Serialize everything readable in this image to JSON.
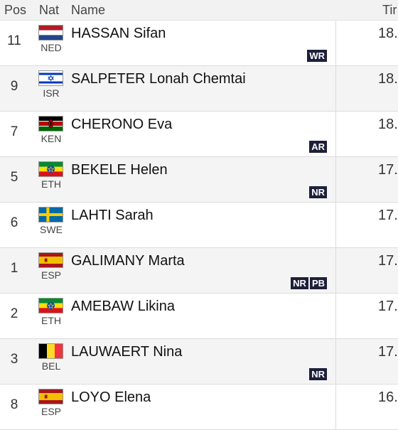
{
  "header": {
    "pos": "Pos",
    "nat": "Nat",
    "name": "Name",
    "time": "Tir"
  },
  "rows": [
    {
      "pos": "11",
      "code": "NED",
      "flag": "flag-netherlands-icon",
      "name": "HASSAN Sifan",
      "time": "18.",
      "badges": [
        "WR"
      ]
    },
    {
      "pos": "9",
      "code": "ISR",
      "flag": "flag-israel-icon",
      "name": "SALPETER Lonah Chemtai",
      "time": "18.",
      "badges": []
    },
    {
      "pos": "7",
      "code": "KEN",
      "flag": "flag-kenya-icon",
      "name": "CHERONO Eva",
      "time": "18.",
      "badges": [
        "AR"
      ]
    },
    {
      "pos": "5",
      "code": "ETH",
      "flag": "flag-ethiopia-icon",
      "name": "BEKELE Helen",
      "time": "17.",
      "badges": [
        "NR"
      ]
    },
    {
      "pos": "6",
      "code": "SWE",
      "flag": "flag-sweden-icon",
      "name": "LAHTI Sarah",
      "time": "17.",
      "badges": []
    },
    {
      "pos": "1",
      "code": "ESP",
      "flag": "flag-spain-icon",
      "name": "GALIMANY Marta",
      "time": "17.",
      "badges": [
        "NR",
        "PB"
      ]
    },
    {
      "pos": "2",
      "code": "ETH",
      "flag": "flag-ethiopia-icon",
      "name": "AMEBAW Likina",
      "time": "17.",
      "badges": []
    },
    {
      "pos": "3",
      "code": "BEL",
      "flag": "flag-belgium-icon",
      "name": "LAUWAERT Nina",
      "time": "17.",
      "badges": [
        "NR"
      ]
    },
    {
      "pos": "8",
      "code": "ESP",
      "flag": "flag-spain-icon",
      "name": "LOYO Elena",
      "time": "16.",
      "badges": []
    }
  ]
}
